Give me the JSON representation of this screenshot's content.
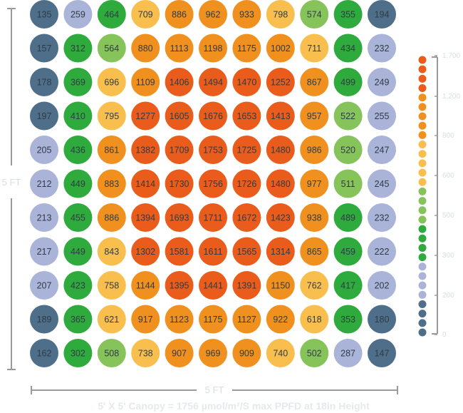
{
  "chart_data": {
    "type": "heatmap",
    "title": "5' X 5' Canopy = 1756 µmol/m²/S max PPFD at 18in Height",
    "width_label": "5 FT",
    "height_label": "5 FT",
    "grid": [
      [
        135,
        259,
        464,
        709,
        886,
        962,
        933,
        798,
        574,
        355,
        194
      ],
      [
        157,
        312,
        564,
        880,
        1113,
        1198,
        1175,
        1002,
        711,
        434,
        232
      ],
      [
        178,
        369,
        696,
        1109,
        1406,
        1494,
        1470,
        1252,
        867,
        499,
        249
      ],
      [
        197,
        410,
        795,
        1277,
        1605,
        1676,
        1653,
        1413,
        957,
        522,
        255
      ],
      [
        205,
        436,
        861,
        1382,
        1709,
        1753,
        1725,
        1480,
        986,
        520,
        247
      ],
      [
        212,
        449,
        883,
        1414,
        1730,
        1756,
        1726,
        1480,
        977,
        511,
        245
      ],
      [
        213,
        455,
        886,
        1394,
        1693,
        1711,
        1672,
        1423,
        938,
        489,
        232
      ],
      [
        217,
        449,
        843,
        1302,
        1581,
        1611,
        1565,
        1314,
        865,
        459,
        222
      ],
      [
        207,
        423,
        758,
        1144,
        1395,
        1441,
        1391,
        1150,
        762,
        417,
        202
      ],
      [
        189,
        365,
        621,
        917,
        1123,
        1175,
        1127,
        922,
        618,
        353,
        180
      ],
      [
        162,
        302,
        508,
        738,
        907,
        969,
        909,
        740,
        502,
        287,
        147
      ]
    ],
    "color_scale": [
      {
        "min": 0,
        "max": 200,
        "color": "#4e6e8a"
      },
      {
        "min": 200,
        "max": 300,
        "color": "#aab3d8"
      },
      {
        "min": 300,
        "max": 500,
        "color": "#2faa3c"
      },
      {
        "min": 500,
        "max": 600,
        "color": "#86c35a"
      },
      {
        "min": 600,
        "max": 850,
        "color": "#f8bf4e"
      },
      {
        "min": 850,
        "max": 1250,
        "color": "#f0911f"
      },
      {
        "min": 1250,
        "max": 9999,
        "color": "#ea5c1c"
      }
    ],
    "scale_ticks": [
      "1,700",
      "1,200",
      "800",
      "600",
      "500",
      "300",
      "200",
      "0"
    ],
    "scale_dots": [
      "#ea5c1c",
      "#ea5c1c",
      "#ea5c1c",
      "#ea5c1c",
      "#f0911f",
      "#f0911f",
      "#f0911f",
      "#f0911f",
      "#f0911f",
      "#f8bf4e",
      "#f8bf4e",
      "#f8bf4e",
      "#f8bf4e",
      "#f8bf4e",
      "#86c35a",
      "#86c35a",
      "#86c35a",
      "#86c35a",
      "#2faa3c",
      "#2faa3c",
      "#2faa3c",
      "#2faa3c",
      "#aab3d8",
      "#aab3d8",
      "#aab3d8",
      "#aab3d8",
      "#4e6e8a",
      "#4e6e8a",
      "#4e6e8a",
      "#4e6e8a"
    ]
  }
}
